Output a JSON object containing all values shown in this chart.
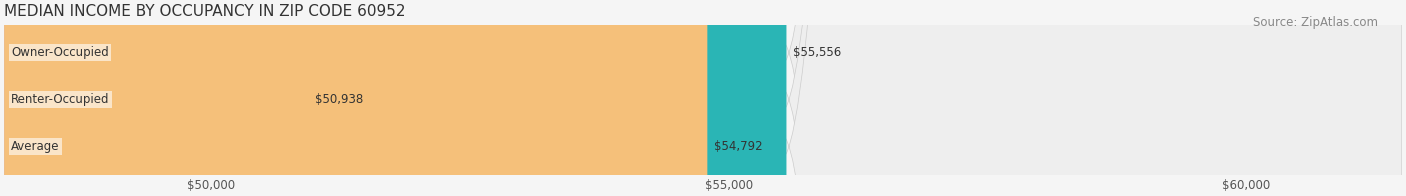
{
  "title": "MEDIAN INCOME BY OCCUPANCY IN ZIP CODE 60952",
  "source": "Source: ZipAtlas.com",
  "categories": [
    "Owner-Occupied",
    "Renter-Occupied",
    "Average"
  ],
  "values": [
    55556,
    50938,
    54792
  ],
  "bar_colors": [
    "#2ab5b5",
    "#c9afd4",
    "#f5c07a"
  ],
  "bar_bg_color": "#eeeeee",
  "value_labels": [
    "$55,556",
    "$50,938",
    "$54,792"
  ],
  "xlim_min": 48000,
  "xlim_max": 61500,
  "xticks": [
    50000,
    55000,
    60000
  ],
  "xtick_labels": [
    "$50,000",
    "$55,000",
    "$60,000"
  ],
  "title_fontsize": 11,
  "source_fontsize": 8.5,
  "label_fontsize": 8.5,
  "tick_fontsize": 8.5,
  "bar_height": 0.55,
  "background_color": "#f5f5f5"
}
